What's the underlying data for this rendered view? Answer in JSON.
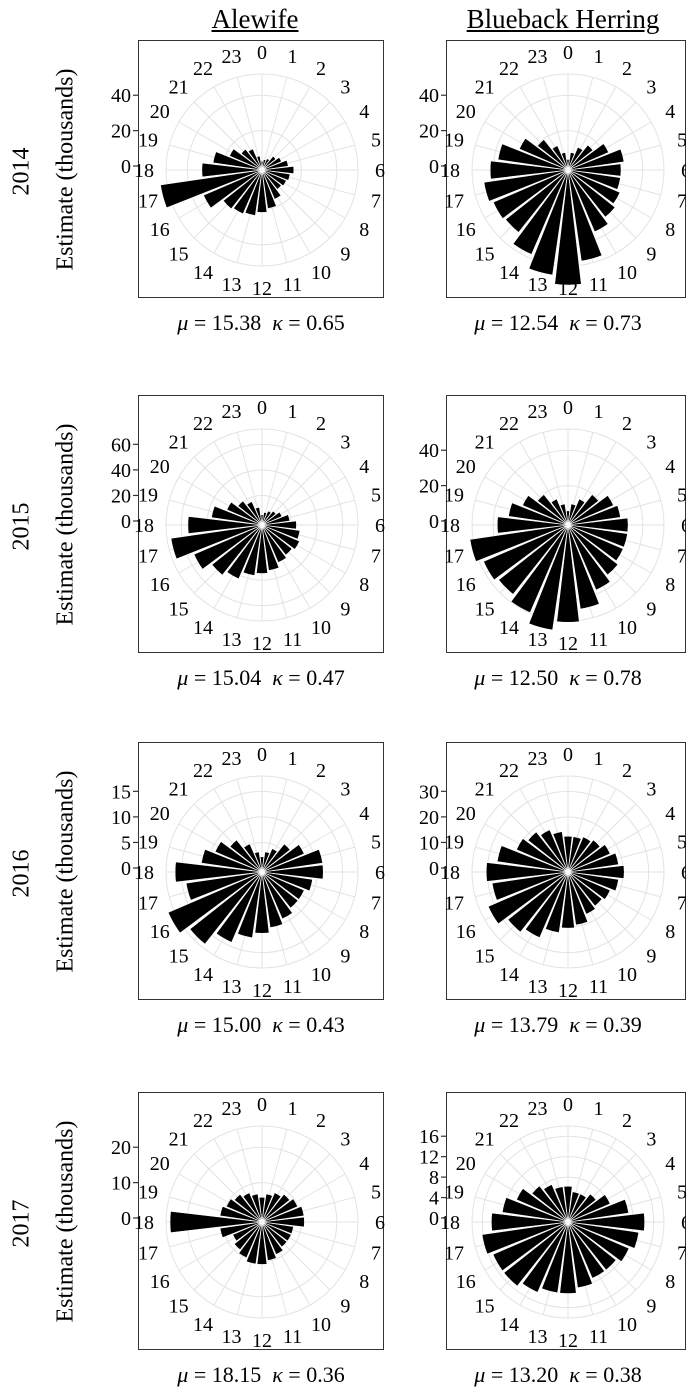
{
  "columns": [
    "Alewife",
    "Blueback Herring"
  ],
  "ylabel": "Estimate (thousands)",
  "rows": [
    {
      "year": "2014",
      "stats": [
        {
          "mu": "15.38",
          "kappa": "0.65"
        },
        {
          "mu": "12.54",
          "kappa": "0.73"
        }
      ]
    },
    {
      "year": "2015",
      "stats": [
        {
          "mu": "15.04",
          "kappa": "0.47"
        },
        {
          "mu": "12.50",
          "kappa": "0.78"
        }
      ]
    },
    {
      "year": "2016",
      "stats": [
        {
          "mu": "15.00",
          "kappa": "0.43"
        },
        {
          "mu": "13.79",
          "kappa": "0.39"
        }
      ]
    },
    {
      "year": "2017",
      "stats": [
        {
          "mu": "18.15",
          "kappa": "0.36"
        },
        {
          "mu": "13.20",
          "kappa": "0.38"
        }
      ]
    }
  ],
  "chart_data": [
    {
      "type": "bar",
      "coord": "polar",
      "species": "Alewife",
      "year": "2014",
      "categories": [
        "0",
        "1",
        "2",
        "3",
        "4",
        "5",
        "6",
        "7",
        "8",
        "9",
        "10",
        "11",
        "12",
        "13",
        "14",
        "15",
        "16",
        "17",
        "18",
        "19",
        "20",
        "21",
        "22",
        "23"
      ],
      "values": [
        5,
        6,
        7,
        10,
        12,
        15,
        18,
        16,
        15,
        14,
        18,
        22,
        24,
        26,
        27,
        28,
        36,
        58,
        34,
        28,
        20,
        15,
        13,
        8
      ],
      "yticks": [
        0,
        20,
        40
      ],
      "ymax": 52,
      "grid": true
    },
    {
      "type": "bar",
      "coord": "polar",
      "species": "Blueback Herring",
      "year": "2014",
      "categories": [
        "0",
        "1",
        "2",
        "3",
        "4",
        "5",
        "6",
        "7",
        "8",
        "9",
        "10",
        "11",
        "12",
        "13",
        "14",
        "15",
        "16",
        "17",
        "18",
        "19",
        "20",
        "21",
        "22",
        "23"
      ],
      "values": [
        6,
        10,
        14,
        18,
        25,
        32,
        30,
        30,
        32,
        34,
        38,
        52,
        65,
        60,
        52,
        45,
        46,
        48,
        44,
        40,
        30,
        22,
        15,
        10
      ],
      "yticks": [
        0,
        20,
        40
      ],
      "ymax": 52,
      "grid": true
    },
    {
      "type": "bar",
      "coord": "polar",
      "species": "Alewife",
      "year": "2015",
      "categories": [
        "0",
        "1",
        "2",
        "3",
        "4",
        "5",
        "6",
        "7",
        "8",
        "9",
        "10",
        "11",
        "12",
        "13",
        "14",
        "15",
        "16",
        "17",
        "18",
        "19",
        "20",
        "21",
        "22",
        "23"
      ],
      "values": [
        8,
        10,
        12,
        14,
        17,
        22,
        27,
        30,
        32,
        30,
        32,
        36,
        38,
        40,
        46,
        50,
        58,
        72,
        58,
        40,
        30,
        24,
        20,
        14
      ],
      "yticks": [
        0,
        20,
        40,
        60
      ],
      "ymax": 72,
      "grid": true
    },
    {
      "type": "bar",
      "coord": "polar",
      "species": "Blueback Herring",
      "year": "2015",
      "categories": [
        "0",
        "1",
        "2",
        "3",
        "4",
        "5",
        "6",
        "7",
        "8",
        "9",
        "10",
        "11",
        "12",
        "13",
        "14",
        "15",
        "16",
        "17",
        "18",
        "19",
        "20",
        "21",
        "22",
        "23"
      ],
      "values": [
        8,
        12,
        16,
        22,
        28,
        30,
        34,
        34,
        34,
        36,
        40,
        48,
        55,
        60,
        54,
        50,
        52,
        56,
        40,
        34,
        28,
        22,
        16,
        12
      ],
      "yticks": [
        0,
        20,
        40
      ],
      "ymax": 52,
      "grid": true
    },
    {
      "type": "bar",
      "coord": "polar",
      "species": "Alewife",
      "year": "2016",
      "categories": [
        "0",
        "1",
        "2",
        "3",
        "4",
        "5",
        "6",
        "7",
        "8",
        "9",
        "10",
        "11",
        "12",
        "13",
        "14",
        "15",
        "16",
        "17",
        "18",
        "19",
        "20",
        "21",
        "22",
        "23"
      ],
      "values": [
        3,
        4,
        5,
        7,
        9,
        12,
        12,
        10,
        9,
        9,
        10,
        11,
        12,
        13,
        15,
        18,
        20,
        15,
        17,
        12,
        10,
        8,
        6,
        4
      ],
      "yticks": [
        0,
        5,
        10,
        15
      ],
      "ymax": 18,
      "grid": true
    },
    {
      "type": "bar",
      "coord": "polar",
      "species": "Blueback Herring",
      "year": "2016",
      "categories": [
        "0",
        "1",
        "2",
        "3",
        "4",
        "5",
        "6",
        "7",
        "8",
        "9",
        "10",
        "11",
        "12",
        "13",
        "14",
        "15",
        "16",
        "17",
        "18",
        "19",
        "20",
        "21",
        "22",
        "23"
      ],
      "values": [
        14,
        14,
        15,
        16,
        18,
        20,
        22,
        20,
        18,
        17,
        18,
        21,
        22,
        24,
        28,
        30,
        34,
        30,
        32,
        28,
        22,
        20,
        18,
        16
      ],
      "yticks": [
        0,
        10,
        20,
        30
      ],
      "ymax": 36,
      "grid": true
    },
    {
      "type": "bar",
      "coord": "polar",
      "species": "Alewife",
      "year": "2017",
      "categories": [
        "0",
        "1",
        "2",
        "3",
        "4",
        "5",
        "6",
        "7",
        "8",
        "9",
        "10",
        "11",
        "12",
        "13",
        "14",
        "15",
        "16",
        "17",
        "18",
        "19",
        "20",
        "21",
        "22",
        "23"
      ],
      "values": [
        7,
        8,
        9,
        10,
        11,
        12,
        12,
        9,
        9,
        9,
        10,
        11,
        12,
        12,
        11,
        10,
        9,
        12,
        26,
        12,
        11,
        10,
        9,
        8
      ],
      "yticks": [
        0,
        10,
        20
      ],
      "ymax": 26,
      "grid": true
    },
    {
      "type": "bar",
      "coord": "polar",
      "species": "Blueback Herring",
      "year": "2017",
      "categories": [
        "0",
        "1",
        "2",
        "3",
        "4",
        "5",
        "6",
        "7",
        "8",
        "9",
        "10",
        "11",
        "12",
        "13",
        "14",
        "15",
        "16",
        "17",
        "18",
        "19",
        "20",
        "21",
        "22",
        "23"
      ],
      "values": [
        7,
        6,
        6,
        7,
        9,
        12,
        15,
        14,
        13,
        12,
        12,
        13,
        14,
        14,
        15,
        16,
        16,
        17,
        15,
        13,
        11,
        9,
        8,
        7
      ],
      "yticks": [
        0,
        4,
        8,
        12,
        16
      ],
      "ymax": 18,
      "grid": true
    }
  ]
}
